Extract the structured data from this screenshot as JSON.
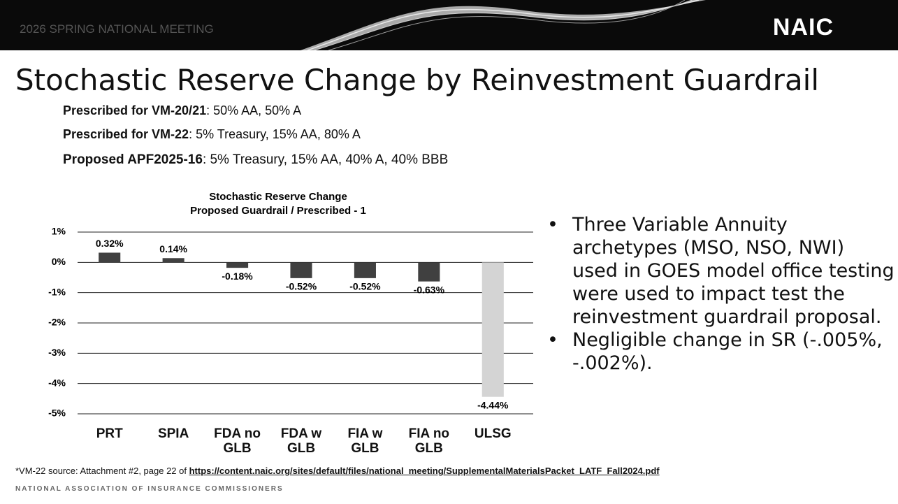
{
  "header": {
    "meeting": "2026 SPRING NATIONAL MEETING",
    "logo": "NAIC"
  },
  "title": "Stochastic Reserve Change by Reinvestment Guardrail",
  "subtitles": [
    {
      "label": "Prescribed for VM-20/21",
      "text": ": 50% AA, 50% A"
    },
    {
      "label": "Prescribed for VM-22",
      "text": ": 5% Treasury, 15% AA, 80% A"
    },
    {
      "label": "Proposed APF2025-16",
      "text": ": 5% Treasury, 15% AA, 40% A, 40% BBB"
    }
  ],
  "chart_data": {
    "type": "bar",
    "title": "Stochastic Reserve Change",
    "subtitle": "Proposed Guardrail / Prescribed - 1",
    "categories": [
      "PRT",
      "SPIA",
      "FDA no GLB",
      "FDA w GLB",
      "FIA w GLB",
      "FIA no GLB",
      "ULSG"
    ],
    "values": [
      0.32,
      0.14,
      -0.18,
      -0.52,
      -0.52,
      -0.63,
      -4.44
    ],
    "value_labels": [
      "0.32%",
      "0.14%",
      "-0.18%",
      "-0.52%",
      "-0.52%",
      "-0.63%",
      "-4.44%"
    ],
    "colors": [
      "#404040",
      "#404040",
      "#404040",
      "#404040",
      "#404040",
      "#404040",
      "#d4d4d4"
    ],
    "ylim": [
      -5,
      1
    ],
    "yticks": [
      {
        "value": 1,
        "label": "1%"
      },
      {
        "value": 0,
        "label": "0%"
      },
      {
        "value": -1,
        "label": "-1%"
      },
      {
        "value": -2,
        "label": "-2%"
      },
      {
        "value": -3,
        "label": "-3%"
      },
      {
        "value": -4,
        "label": "-4%"
      },
      {
        "value": -5,
        "label": "-5%"
      }
    ],
    "grid": true
  },
  "bullets": [
    "Three Variable Annuity archetypes (MSO, NSO, NWI) used in GOES model office testing were used to impact test the reinvestment guardrail proposal.",
    "Negligible change in SR (-.005%, -.002%)."
  ],
  "footnote": {
    "text": "*VM-22 source: Attachment #2, page 22 of ",
    "link": "https://content.naic.org/sites/default/files/national_meeting/SupplementalMaterialsPacket_LATF_Fall2024.pdf"
  },
  "footer": "NATIONAL ASSOCIATION OF INSURANCE COMMISSIONERS"
}
